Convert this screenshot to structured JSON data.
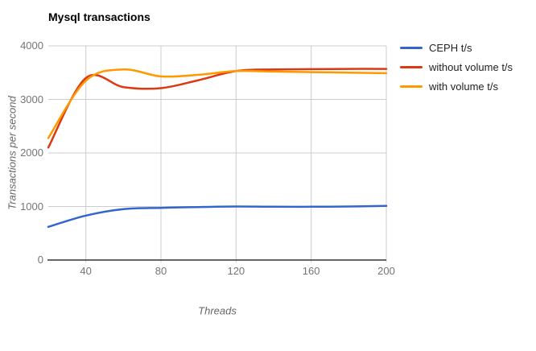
{
  "title": "Mysql transactions",
  "chart_data": {
    "type": "line",
    "title": "Mysql transactions",
    "xlabel": "Threads",
    "ylabel": "Transactions per second",
    "smooth": true,
    "grid": true,
    "legend_position": "right",
    "xlim": [
      20,
      200
    ],
    "ylim": [
      0,
      4000
    ],
    "x_ticks": [
      40,
      80,
      120,
      160,
      200
    ],
    "y_ticks": [
      0,
      1000,
      2000,
      3000,
      4000
    ],
    "x": [
      20,
      40,
      60,
      80,
      100,
      120,
      140,
      160,
      180,
      200
    ],
    "series": [
      {
        "name": "CEPH t/s",
        "color": "#3366CC",
        "values": [
          620,
          830,
          950,
          975,
          990,
          1000,
          995,
          995,
          1000,
          1010
        ]
      },
      {
        "name": "without volume t/s",
        "color": "#DC3912",
        "values": [
          2100,
          3400,
          3230,
          3210,
          3360,
          3530,
          3560,
          3565,
          3570,
          3570
        ]
      },
      {
        "name": "with volume t/s",
        "color": "#FF9900",
        "values": [
          2280,
          3350,
          3560,
          3430,
          3460,
          3530,
          3520,
          3510,
          3500,
          3490
        ]
      }
    ]
  },
  "colors": {
    "background": "#FFFFFF",
    "grid": "#CCCCCC",
    "axis_line": "#333333",
    "tick_label": "#757575",
    "axis_title": "#666666",
    "legend_text": "#222222",
    "title_text": "#000000"
  }
}
